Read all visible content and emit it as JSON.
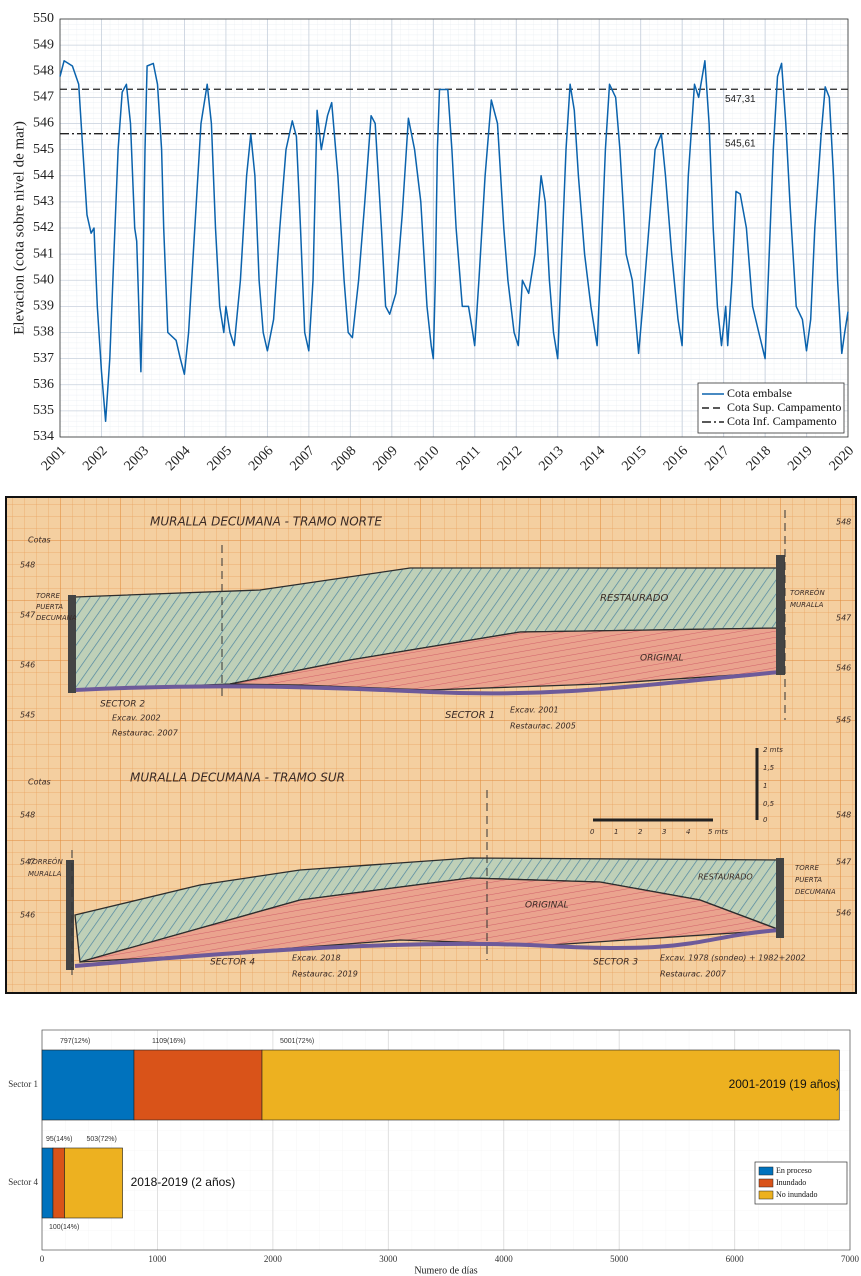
{
  "chart_data": [
    {
      "type": "line",
      "ylabel": "Elevacion (cota sobre nivel de mar)",
      "xlim": [
        2001,
        2020
      ],
      "xticks": [
        2001,
        2002,
        2003,
        2004,
        2005,
        2006,
        2007,
        2008,
        2009,
        2010,
        2011,
        2012,
        2013,
        2014,
        2015,
        2016,
        2017,
        2018,
        2019,
        2020
      ],
      "ylim": [
        534,
        550
      ],
      "yticks": [
        534,
        535,
        536,
        537,
        538,
        539,
        540,
        541,
        542,
        543,
        544,
        545,
        546,
        547,
        548,
        549,
        550
      ],
      "grid": true,
      "legend": "lower right",
      "series": [
        {
          "name": "Cota embalse",
          "color": "#0b63ad",
          "x": [
            2001.0,
            2001.1,
            2001.3,
            2001.45,
            2001.55,
            2001.65,
            2001.75,
            2001.82,
            2001.9,
            2002.0,
            2002.1,
            2002.2,
            2002.3,
            2002.4,
            2002.5,
            2002.6,
            2002.7,
            2002.8,
            2002.85,
            2002.9,
            2002.95,
            2003.0,
            2003.05,
            2003.1,
            2003.25,
            2003.35,
            2003.45,
            2003.5,
            2003.6,
            2003.8,
            2003.9,
            2004.0,
            2004.1,
            2004.25,
            2004.4,
            2004.55,
            2004.65,
            2004.75,
            2004.85,
            2004.95,
            2005.0,
            2005.1,
            2005.2,
            2005.35,
            2005.5,
            2005.6,
            2005.7,
            2005.8,
            2005.9,
            2006.0,
            2006.15,
            2006.3,
            2006.45,
            2006.6,
            2006.7,
            2006.8,
            2006.9,
            2007.0,
            2007.1,
            2007.2,
            2007.3,
            2007.45,
            2007.55,
            2007.7,
            2007.85,
            2007.95,
            2008.05,
            2008.2,
            2008.35,
            2008.5,
            2008.6,
            2008.75,
            2008.85,
            2008.95,
            2009.1,
            2009.25,
            2009.4,
            2009.55,
            2009.7,
            2009.85,
            2009.95,
            2010.0,
            2010.05,
            2010.1,
            2010.15,
            2010.35,
            2010.45,
            2010.55,
            2010.7,
            2010.85,
            2010.95,
            2011.0,
            2011.1,
            2011.25,
            2011.4,
            2011.55,
            2011.7,
            2011.8,
            2011.95,
            2012.05,
            2012.15,
            2012.3,
            2012.45,
            2012.6,
            2012.7,
            2012.8,
            2012.9,
            2013.0,
            2013.1,
            2013.2,
            2013.3,
            2013.4,
            2013.5,
            2013.65,
            2013.8,
            2013.95,
            2014.05,
            2014.15,
            2014.25,
            2014.4,
            2014.5,
            2014.65,
            2014.8,
            2014.95,
            2015.05,
            2015.2,
            2015.35,
            2015.5,
            2015.6,
            2015.75,
            2015.9,
            2016.0,
            2016.05,
            2016.15,
            2016.3,
            2016.4,
            2016.55,
            2016.65,
            2016.75,
            2016.85,
            2016.95,
            2017.05,
            2017.1,
            2017.2,
            2017.3,
            2017.4,
            2017.55,
            2017.7,
            2017.85,
            2018.0,
            2018.1,
            2018.2,
            2018.3,
            2018.4,
            2018.5,
            2018.6,
            2018.75,
            2018.9,
            2019.0,
            2019.1,
            2019.2,
            2019.35,
            2019.45,
            2019.55,
            2019.65,
            2019.75,
            2019.85,
            2019.92,
            2020.0
          ],
          "values": [
            547.8,
            548.4,
            548.2,
            547.5,
            545,
            542.5,
            541.8,
            542,
            539,
            536.5,
            534.6,
            537,
            541,
            545,
            547.2,
            547.5,
            546,
            542,
            541.5,
            539,
            536.5,
            540,
            545,
            548.2,
            548.3,
            547.5,
            545,
            542,
            538,
            537.7,
            537,
            536.4,
            538,
            542,
            546,
            547.5,
            546,
            542,
            539,
            538,
            539,
            538,
            537.5,
            540,
            544,
            545.6,
            544,
            540,
            538,
            537.3,
            538.5,
            542,
            545,
            546.1,
            545.5,
            542,
            538,
            537.3,
            540,
            546.5,
            545,
            546.3,
            546.8,
            544,
            540,
            538,
            537.8,
            540,
            543,
            546.3,
            546,
            542,
            539,
            538.7,
            539.5,
            542.5,
            546.2,
            545,
            543,
            539,
            537.5,
            537,
            540,
            545,
            547.3,
            547.3,
            545,
            542,
            539,
            539,
            538,
            537.5,
            540,
            544,
            546.9,
            546,
            542,
            540,
            538,
            537.5,
            540,
            539.5,
            541,
            544,
            543,
            540,
            538,
            537,
            541,
            545,
            547.5,
            546.5,
            544,
            541,
            539,
            537.5,
            541,
            545,
            547.5,
            547,
            545,
            541,
            540,
            537.2,
            539,
            542,
            545,
            545.6,
            544,
            541,
            538.5,
            537.5,
            540,
            544,
            547.5,
            547,
            548.4,
            546,
            542,
            539,
            537.5,
            539,
            537.5,
            540,
            543.4,
            543.3,
            542,
            539,
            538,
            537,
            541,
            545,
            547.8,
            548.3,
            546,
            543,
            539,
            538.5,
            537.3,
            538.5,
            542,
            545.5,
            547.4,
            547,
            544,
            540,
            537.2,
            538,
            538.8
          ]
        }
      ],
      "reference_lines": [
        {
          "name": "Cota Sup. Campamento",
          "value": 547.31,
          "label": "547,31",
          "style": "dashed",
          "color": "#222222"
        },
        {
          "name": "Cota Inf. Campamento",
          "value": 545.61,
          "label": "545,61",
          "style": "dashdot",
          "color": "#222222"
        }
      ]
    },
    {
      "type": "stacked_barh",
      "xlabel": "Numero de días",
      "categories": [
        "Sector 1",
        "Sector 4"
      ],
      "xlim": [
        0,
        7000
      ],
      "xticks": [
        0,
        1000,
        2000,
        3000,
        4000,
        5000,
        6000,
        7000
      ],
      "grid": true,
      "legend": "right",
      "series": [
        {
          "name": "En proceso",
          "color": "#0072bd",
          "values": [
            797,
            95
          ],
          "value_labels": [
            "797(12%)",
            "95(14%)"
          ]
        },
        {
          "name": "Inundado",
          "color": "#d95319",
          "values": [
            1109,
            100
          ],
          "value_labels": [
            "1109(16%)",
            "100(14%)"
          ]
        },
        {
          "name": "No inundado",
          "color": "#edb120",
          "values": [
            5001,
            503
          ],
          "value_labels": [
            "5001(72%)",
            "503(72%)"
          ]
        }
      ],
      "annotations": [
        "2001-2019 (19 años)",
        "2018-2019 (2 años)"
      ]
    }
  ],
  "drawing": {
    "labels": [
      "MURALLA DECUMANA - TRAMO NORTE",
      "Cotas",
      "TORRE",
      "PUERTA",
      "DECUMANA",
      "RESTAURADO",
      "ORIGINAL",
      "TORREÓN",
      "MURALLA",
      "SECTOR 2",
      "Excav. 2002",
      "Restaurac. 2007",
      "SECTOR 1",
      "Excav. 2001",
      "Restaurac. 2005",
      "MURALLA DECUMANA - TRAMO SUR",
      "Cotas",
      "TORREÓN",
      "MURALLA",
      "RESTAURADO",
      "ORIGINAL",
      "TORRE",
      "PUERTA",
      "DECUMANA",
      "SECTOR 4",
      "Excav. 2018",
      "Restaurac. 2019",
      "SECTOR 3",
      "Excav. 1978 (sondeo) + 1982+2002",
      "Restaurac. 2007",
      "0",
      "1",
      "2",
      "3",
      "4",
      "5 mts",
      "2 mts",
      "1,5",
      "1",
      "0,5",
      "0",
      "548",
      "547",
      "546",
      "545",
      "548",
      "547",
      "546",
      "545",
      "548",
      "547",
      "546",
      "548",
      "547",
      "546"
    ]
  }
}
